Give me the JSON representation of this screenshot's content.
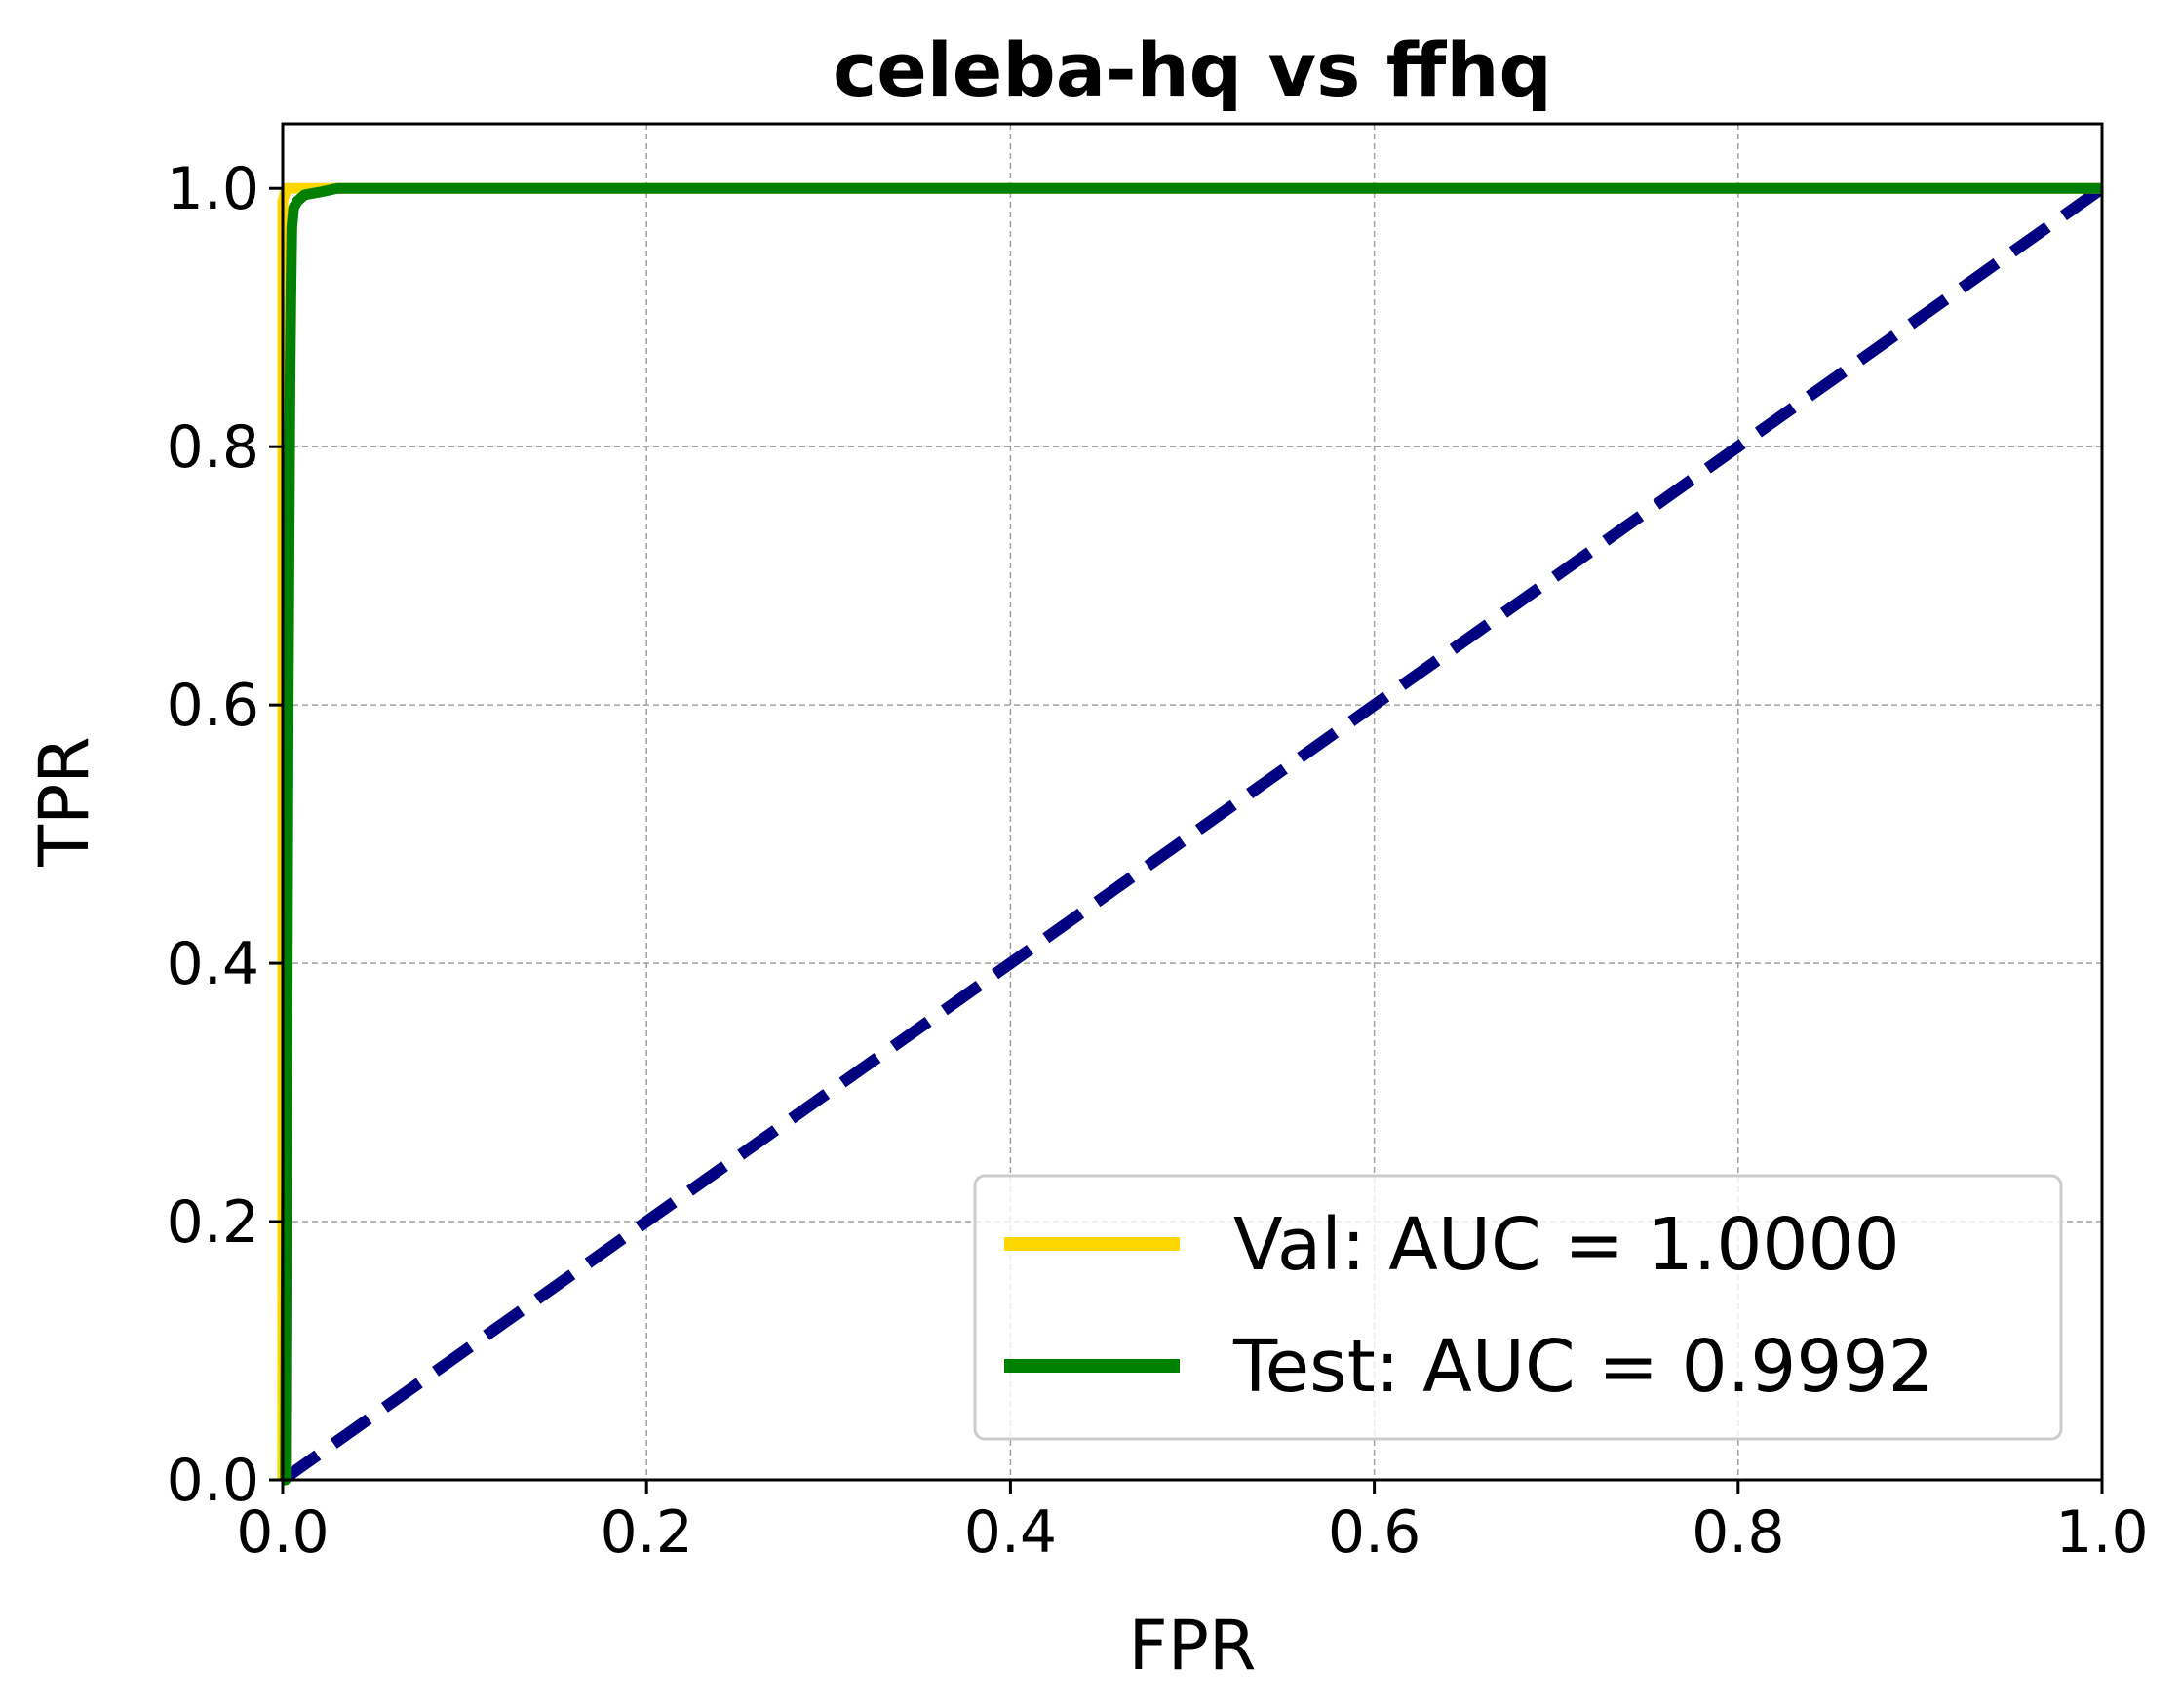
{
  "chart_data": {
    "type": "line",
    "title": "celeba-hq vs ffhq",
    "xlabel": "FPR",
    "ylabel": "TPR",
    "xlim": [
      0.0,
      1.0
    ],
    "ylim": [
      0.0,
      1.05
    ],
    "xticks": [
      "0.0",
      "0.2",
      "0.4",
      "0.6",
      "0.8",
      "1.0"
    ],
    "yticks": [
      "0.0",
      "0.2",
      "0.4",
      "0.6",
      "0.8",
      "1.0"
    ],
    "grid": true,
    "legend_position": "lower-right",
    "series": [
      {
        "name": "Val: AUC = 1.0000",
        "color": "#FFD700",
        "x": [
          0.0,
          0.0,
          0.002,
          0.006,
          0.012,
          1.0
        ],
        "y": [
          0.0,
          0.99,
          1.0,
          1.0,
          1.0,
          1.0
        ]
      },
      {
        "name": "Test: AUC = 0.9992",
        "color": "#008000",
        "x": [
          0.0,
          0.0015,
          0.003,
          0.004,
          0.0045,
          0.005,
          0.006,
          0.008,
          0.012,
          0.02,
          0.03,
          1.0
        ],
        "y": [
          0.0,
          0.0,
          0.6,
          0.85,
          0.92,
          0.97,
          0.985,
          0.99,
          0.995,
          0.997,
          1.0,
          1.0
        ]
      }
    ],
    "reference_line": {
      "color": "#000080",
      "style": "dashed",
      "x": [
        0.0,
        1.0
      ],
      "y": [
        0.0,
        1.0
      ]
    }
  }
}
